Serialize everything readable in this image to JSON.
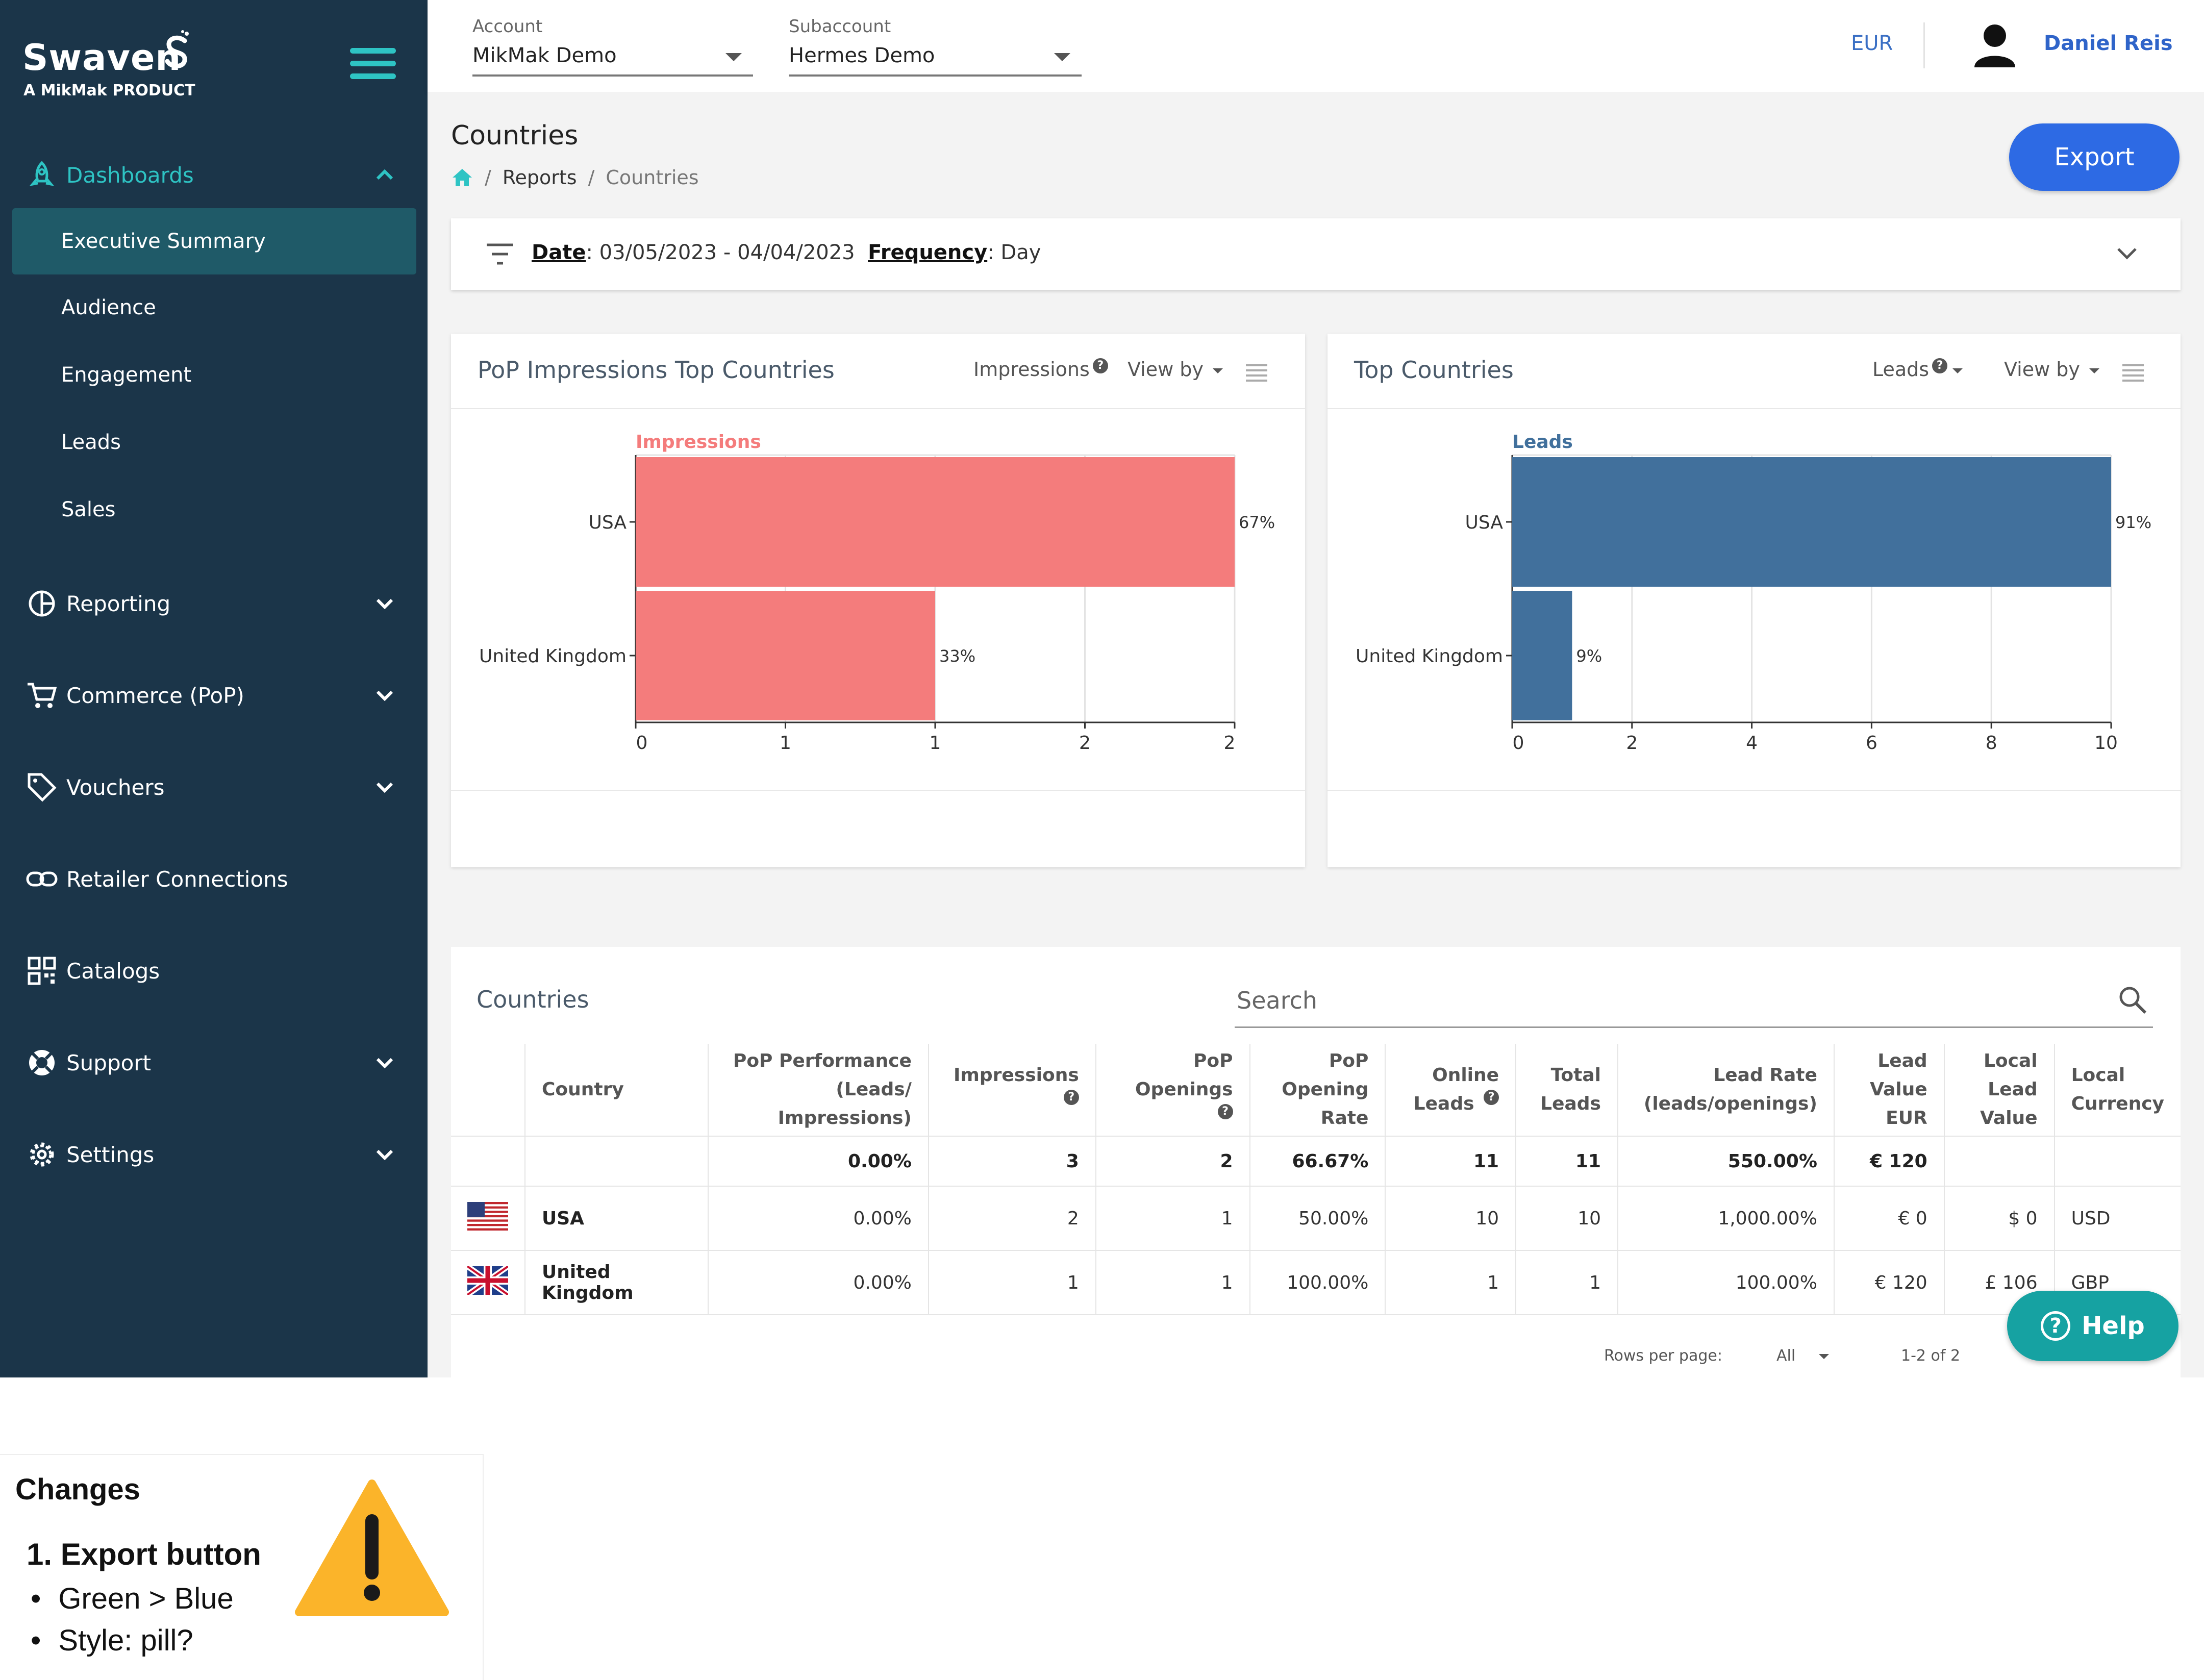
{
  "brand": {
    "name": "Swaven",
    "tagline": "A MikMak PRODUCT"
  },
  "topbar": {
    "account": {
      "label": "Account",
      "value": "MikMak Demo"
    },
    "subaccount": {
      "label": "Subaccount",
      "value": "Hermes Demo"
    },
    "currency": "EUR",
    "user": "Daniel Reis"
  },
  "sidebar": {
    "dashboards": {
      "label": "Dashboards",
      "items": [
        "Executive Summary",
        "Audience",
        "Engagement",
        "Leads",
        "Sales"
      ]
    },
    "sections": [
      "Reporting",
      "Commerce (PoP)",
      "Vouchers",
      "Retailer Connections",
      "Catalogs",
      "Support",
      "Settings"
    ]
  },
  "page": {
    "title": "Countries",
    "breadcrumb": [
      "Reports",
      "Countries"
    ],
    "export_label": "Export"
  },
  "filter": {
    "date_label": "Date",
    "date_value": "03/05/2023 - 04/04/2023",
    "frequency_label": "Frequency",
    "frequency_value": "Day"
  },
  "cards": {
    "impressions": {
      "title": "PoP Impressions Top Countries",
      "metric": "Impressions",
      "viewby": "View by"
    },
    "leads": {
      "title": "Top Countries",
      "metric": "Leads",
      "viewby": "View by"
    }
  },
  "chart_data": [
    {
      "type": "bar",
      "orientation": "horizontal",
      "title": "Impressions",
      "categories": [
        "USA",
        "United Kingdom"
      ],
      "values": [
        2,
        1
      ],
      "data_labels": [
        "67%",
        "33%"
      ],
      "xticks": [
        "0",
        "1",
        "1",
        "2",
        "2"
      ],
      "xlim": [
        0,
        2
      ],
      "grid": true,
      "color": "#f47c7c"
    },
    {
      "type": "bar",
      "orientation": "horizontal",
      "title": "Leads",
      "categories": [
        "USA",
        "United Kingdom"
      ],
      "values": [
        10,
        1
      ],
      "data_labels": [
        "91%",
        "9%"
      ],
      "xticks": [
        "0",
        "2",
        "4",
        "6",
        "8",
        "10"
      ],
      "xlim": [
        0,
        10
      ],
      "grid": true,
      "color": "#41709c"
    }
  ],
  "table": {
    "title": "Countries",
    "search_placeholder": "Search",
    "columns": [
      "Country",
      "PoP Performance (Leads/ Impressions)",
      "Impressions",
      "PoP Openings",
      "PoP Opening Rate",
      "Online Leads",
      "Total Leads",
      "Lead Rate (leads/openings)",
      "Lead Value EUR",
      "Local Lead Value",
      "Local Currency"
    ],
    "totals": [
      "",
      "0.00%",
      "3",
      "2",
      "66.67%",
      "11",
      "11",
      "550.00%",
      "€ 120",
      "",
      ""
    ],
    "rows": [
      [
        "USA",
        "0.00%",
        "2",
        "1",
        "50.00%",
        "10",
        "10",
        "1,000.00%",
        "€ 0",
        "$ 0",
        "USD"
      ],
      [
        "United Kingdom",
        "0.00%",
        "1",
        "1",
        "100.00%",
        "1",
        "1",
        "100.00%",
        "€ 120",
        "£ 106",
        "GBP"
      ]
    ],
    "rows_per_page_label": "Rows per page:",
    "rows_per_page_value": "All",
    "range": "1-2 of 2"
  },
  "help_label": "Help",
  "notes": {
    "title": "Changes",
    "heading": "1. Export button",
    "bullets": [
      "Green > Blue",
      "Style: pill?"
    ]
  },
  "colors": {
    "sidebar": "#1b3549",
    "accent": "#2ec4c4",
    "export": "#2d6ae4",
    "help": "#16a2a2"
  }
}
